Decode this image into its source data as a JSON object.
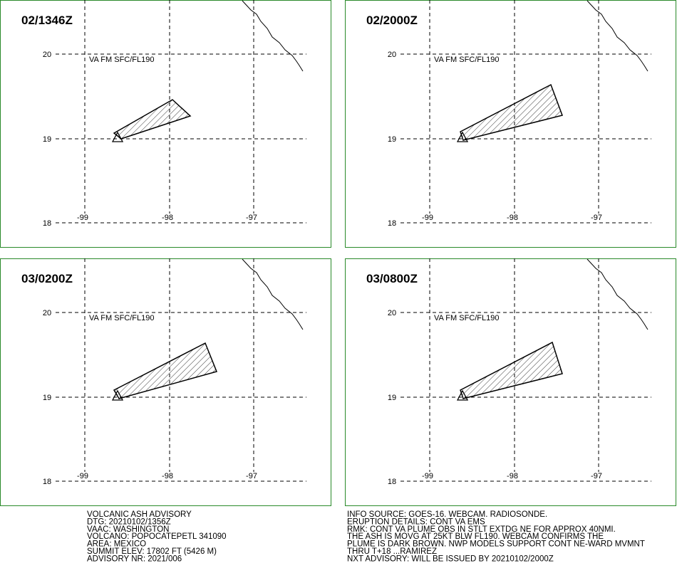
{
  "panels": [
    {
      "time": "02/1346Z",
      "level": "VA FM SFC/FL190",
      "lat_labels": [
        "20",
        "19",
        "18"
      ],
      "lon_labels": [
        "-99",
        "-98",
        "-97"
      ]
    },
    {
      "time": "02/2000Z",
      "level": "VA FM SFC/FL190",
      "lat_labels": [
        "20",
        "19",
        "18"
      ],
      "lon_labels": [
        "-99",
        "-98",
        "-97"
      ]
    },
    {
      "time": "03/0200Z",
      "level": "VA FM SFC/FL190",
      "lat_labels": [
        "20",
        "19",
        "18"
      ],
      "lon_labels": [
        "-99",
        "-98",
        "-97"
      ]
    },
    {
      "time": "03/0800Z",
      "level": "VA FM SFC/FL190",
      "lat_labels": [
        "20",
        "19",
        "18"
      ],
      "lon_labels": [
        "-99",
        "-98",
        "-97"
      ]
    }
  ],
  "advisory": {
    "left_lines": [
      "VOLCANIC ASH ADVISORY",
      "DTG: 20210102/1356Z",
      "VAAC: WASHINGTON",
      "VOLCANO: POPOCATEPETL 341090",
      "AREA: MEXICO",
      "SUMMIT ELEV: 17802 FT (5426 M)",
      "ADVISORY NR: 2021/006"
    ],
    "right_lines": [
      "INFO SOURCE: GOES-16. WEBCAM. RADIOSONDE.",
      "ERUPTION DETAILS: CONT VA EMS",
      "RMK: CONT VA PLUME OBS IN STLT EXTDG NE FOR APPROX 40NMI.",
      "THE ASH IS MOVG AT 25KT BLW FL190. WEBCAM CONFIRMS THE",
      "PLUME IS DARK BROWN. NWP MODELS SUPPORT CONT NE-WARD MVMNT",
      "THRU T+18 ...RAMIREZ",
      "NXT ADVISORY: WILL BE ISSUED BY 20210102/2000Z"
    ]
  }
}
